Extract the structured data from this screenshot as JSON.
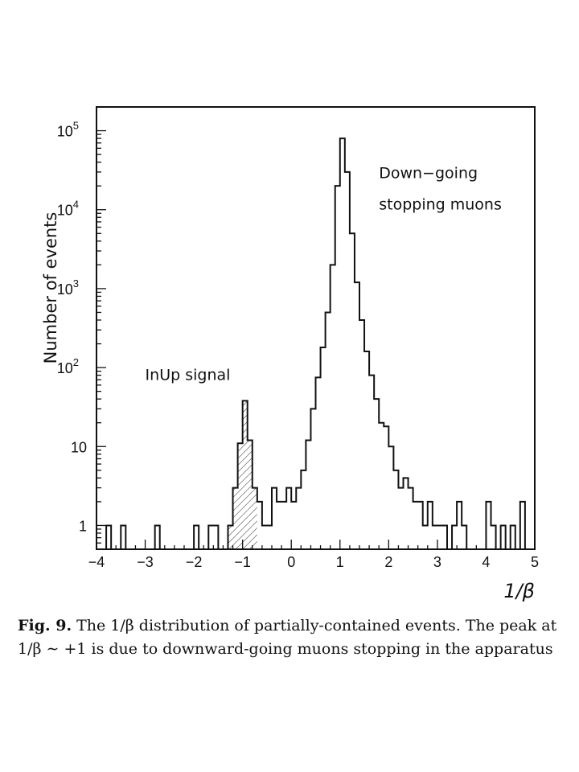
{
  "chart_data": {
    "type": "histogram",
    "xlabel": "1/β",
    "ylabel": "Number of events",
    "xlim": [
      -4,
      5
    ],
    "ylim": [
      0.5,
      200000
    ],
    "yscale": "log",
    "x_ticks": [
      "−4",
      "−3",
      "−2",
      "−1",
      "0",
      "1",
      "2",
      "3",
      "4",
      "5"
    ],
    "y_ticks": [
      {
        "value": 1,
        "base": "1",
        "exp": ""
      },
      {
        "value": 10,
        "base": "10",
        "exp": ""
      },
      {
        "value": 100,
        "base": "10",
        "exp": "2"
      },
      {
        "value": 1000,
        "base": "10",
        "exp": "3"
      },
      {
        "value": 10000,
        "base": "10",
        "exp": "4"
      },
      {
        "value": 100000,
        "base": "10",
        "exp": "5"
      }
    ],
    "bin_width": 0.1,
    "bins": [
      {
        "x": -3.8,
        "y": 1
      },
      {
        "x": -3.5,
        "y": 1
      },
      {
        "x": -2.8,
        "y": 1
      },
      {
        "x": -2.0,
        "y": 1
      },
      {
        "x": -1.7,
        "y": 1
      },
      {
        "x": -1.6,
        "y": 1
      },
      {
        "x": -1.3,
        "y": 1
      },
      {
        "x": -1.2,
        "y": 3
      },
      {
        "x": -1.1,
        "y": 11
      },
      {
        "x": -1.0,
        "y": 38
      },
      {
        "x": -0.9,
        "y": 12
      },
      {
        "x": -0.8,
        "y": 3
      },
      {
        "x": -0.7,
        "y": 2
      },
      {
        "x": -0.6,
        "y": 1
      },
      {
        "x": -0.5,
        "y": 1
      },
      {
        "x": -0.4,
        "y": 3
      },
      {
        "x": -0.3,
        "y": 2
      },
      {
        "x": -0.2,
        "y": 2
      },
      {
        "x": -0.1,
        "y": 3
      },
      {
        "x": 0.0,
        "y": 2
      },
      {
        "x": 0.1,
        "y": 3
      },
      {
        "x": 0.2,
        "y": 5
      },
      {
        "x": 0.3,
        "y": 12
      },
      {
        "x": 0.4,
        "y": 30
      },
      {
        "x": 0.5,
        "y": 75
      },
      {
        "x": 0.6,
        "y": 180
      },
      {
        "x": 0.7,
        "y": 500
      },
      {
        "x": 0.8,
        "y": 2000
      },
      {
        "x": 0.9,
        "y": 20000
      },
      {
        "x": 1.0,
        "y": 80000
      },
      {
        "x": 1.1,
        "y": 30000
      },
      {
        "x": 1.2,
        "y": 5000
      },
      {
        "x": 1.3,
        "y": 1200
      },
      {
        "x": 1.4,
        "y": 400
      },
      {
        "x": 1.5,
        "y": 160
      },
      {
        "x": 1.6,
        "y": 80
      },
      {
        "x": 1.7,
        "y": 40
      },
      {
        "x": 1.8,
        "y": 20
      },
      {
        "x": 1.9,
        "y": 18
      },
      {
        "x": 2.0,
        "y": 10
      },
      {
        "x": 2.1,
        "y": 5
      },
      {
        "x": 2.2,
        "y": 3
      },
      {
        "x": 2.3,
        "y": 4
      },
      {
        "x": 2.4,
        "y": 3
      },
      {
        "x": 2.5,
        "y": 2
      },
      {
        "x": 2.6,
        "y": 2
      },
      {
        "x": 2.7,
        "y": 1
      },
      {
        "x": 2.8,
        "y": 2
      },
      {
        "x": 2.9,
        "y": 1
      },
      {
        "x": 3.0,
        "y": 1
      },
      {
        "x": 3.1,
        "y": 1
      },
      {
        "x": 3.3,
        "y": 1
      },
      {
        "x": 3.4,
        "y": 2
      },
      {
        "x": 3.5,
        "y": 1
      },
      {
        "x": 4.0,
        "y": 2
      },
      {
        "x": 4.1,
        "y": 1
      },
      {
        "x": 4.3,
        "y": 1
      },
      {
        "x": 4.5,
        "y": 1
      },
      {
        "x": 4.7,
        "y": 2
      }
    ],
    "shaded_signal_range": [
      -1.3,
      -0.7
    ],
    "annotations": [
      {
        "text": "InUp signal",
        "x": -3.0,
        "y": 70
      },
      {
        "text": "Down−going",
        "x": 1.8,
        "y": 25000
      },
      {
        "text": "stopping muons",
        "x": 1.8,
        "y": 10000
      }
    ],
    "grid": false,
    "legend": "none"
  },
  "caption": {
    "label": "Fig. 9.",
    "text": " The 1/β distribution of partially-contained events. The peak at 1/β ∼ +1 is due to downward-going muons stopping in the apparatus"
  }
}
